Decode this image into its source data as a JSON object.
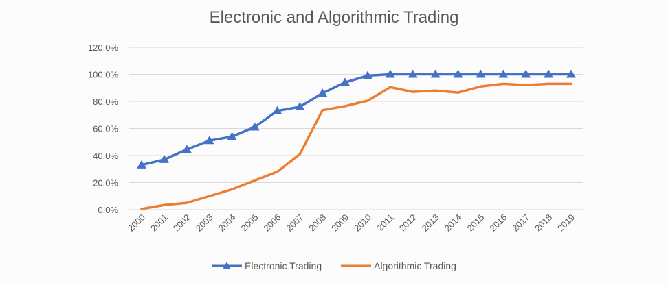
{
  "chart_data": {
    "type": "line",
    "title": "Electronic and Algorithmic Trading",
    "xlabel": "",
    "ylabel": "",
    "x": [
      "2000",
      "2001",
      "2002",
      "2003",
      "2004",
      "2005",
      "2006",
      "2007",
      "2008",
      "2009",
      "2010",
      "2011",
      "2012",
      "2013",
      "2014",
      "2015",
      "2016",
      "2017",
      "2018",
      "2019"
    ],
    "ylim": [
      0,
      120
    ],
    "yticks": [
      "0.0%",
      "20.0%",
      "40.0%",
      "60.0%",
      "80.0%",
      "100.0%",
      "120.0%"
    ],
    "grid": true,
    "legend_position": "bottom",
    "series": [
      {
        "name": "Electronic Trading",
        "color": "#4472c4",
        "marker": "triangle",
        "values": [
          33,
          37,
          44.5,
          51,
          54,
          61,
          73,
          76,
          86,
          94,
          99,
          100,
          100,
          100,
          100,
          100,
          100,
          100,
          100,
          100
        ]
      },
      {
        "name": "Algorithmic Trading",
        "color": "#ed7d31",
        "marker": "none",
        "values": [
          0.5,
          3.4,
          5,
          10,
          15,
          21.5,
          28,
          41,
          73.5,
          76.5,
          80.5,
          90.5,
          87,
          88,
          86.5,
          91,
          93,
          92,
          93,
          93
        ]
      }
    ]
  }
}
